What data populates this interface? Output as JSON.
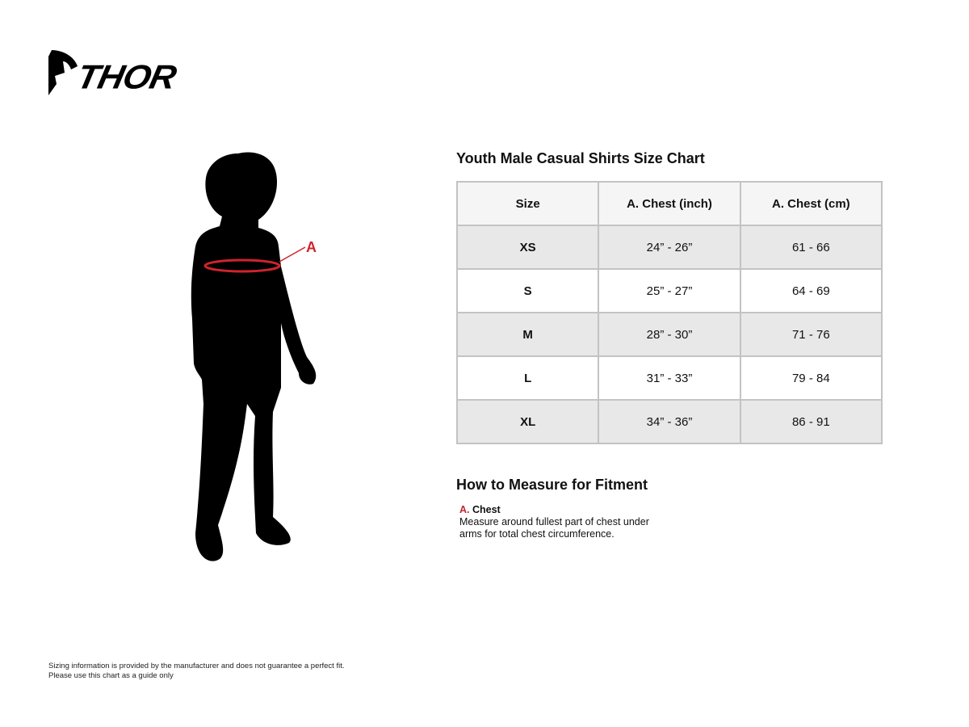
{
  "brand": {
    "logo_text": "THOR"
  },
  "figure": {
    "measure_marker": "A",
    "marker_color": "#d0232e"
  },
  "size_chart": {
    "title": "Youth Male Casual Shirts Size Chart",
    "headers": [
      "Size",
      "A. Chest (inch)",
      "A. Chest (cm)"
    ],
    "rows": [
      [
        "XS",
        "24” - 26”",
        "61 - 66"
      ],
      [
        "S",
        "25” - 27”",
        "64 - 69"
      ],
      [
        "M",
        "28” - 30”",
        "71 - 76"
      ],
      [
        "L",
        "31” - 33”",
        "79 - 84"
      ],
      [
        "XL",
        "34” - 36”",
        "86 - 91"
      ]
    ]
  },
  "how_to_measure": {
    "title": "How to Measure for Fitment",
    "items": [
      {
        "letter": "A.",
        "label": "Chest",
        "description": "Measure around fullest part of chest under arms for total chest circumference."
      }
    ]
  },
  "disclaimer": {
    "line1": "Sizing information is provided by the manufacturer and does not guarantee a perfect fit.",
    "line2": "Please use this chart as a guide only"
  }
}
